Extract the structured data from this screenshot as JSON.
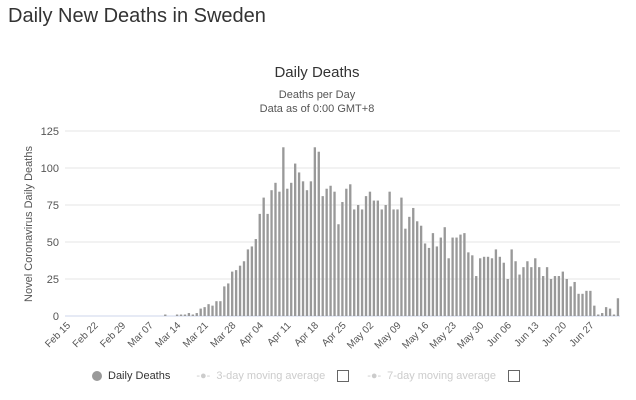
{
  "page_title": "Daily New Deaths in Sweden",
  "chart_data": {
    "type": "bar",
    "title": "Daily Deaths",
    "subtitle": "Deaths per Day",
    "subtitle2": "Data as of 0:00 GMT+8",
    "ylabel": "Novel Coronavirus Daily Deaths",
    "ylim": [
      0,
      125
    ],
    "yticks": [
      0,
      25,
      50,
      75,
      100,
      125
    ],
    "grid": true,
    "start_date": "Feb 15",
    "xtick_labels": [
      "Feb 15",
      "Feb 22",
      "Feb 29",
      "Mar 07",
      "Mar 14",
      "Mar 21",
      "Mar 28",
      "Apr 04",
      "Apr 11",
      "Apr 18",
      "Apr 25",
      "May 02",
      "May 09",
      "May 16",
      "May 23",
      "May 30",
      "Jun 06",
      "Jun 13",
      "Jun 20",
      "Jun 27"
    ],
    "bar_color": "#999999",
    "values": [
      0,
      0,
      0,
      0,
      0,
      0,
      0,
      0,
      0,
      0,
      0,
      0,
      0,
      0,
      0,
      0,
      0,
      0,
      0,
      0,
      0,
      0,
      0,
      0,
      0,
      1,
      0,
      0,
      1,
      1,
      1,
      2,
      1,
      2,
      5,
      6,
      8,
      7,
      10,
      10,
      20,
      22,
      30,
      31,
      34,
      37,
      45,
      47,
      52,
      69,
      80,
      69,
      85,
      90,
      84,
      114,
      86,
      90,
      103,
      97,
      91,
      85,
      91,
      114,
      111,
      81,
      86,
      88,
      84,
      62,
      77,
      86,
      89,
      72,
      75,
      72,
      81,
      84,
      78,
      78,
      72,
      75,
      84,
      72,
      72,
      80,
      59,
      67,
      73,
      64,
      61,
      49,
      46,
      56,
      47,
      53,
      60,
      39,
      53,
      53,
      55,
      56,
      43,
      41,
      27,
      39,
      40,
      40,
      39,
      45,
      40,
      36,
      25,
      45,
      37,
      28,
      33,
      37,
      33,
      39,
      33,
      27,
      33,
      25,
      27,
      27,
      30,
      25,
      20,
      23,
      15,
      15,
      17,
      17,
      7,
      1,
      2,
      6,
      5,
      1,
      12
    ],
    "legend": [
      {
        "label": "Daily Deaths",
        "enabled": true
      },
      {
        "label": "3-day moving average",
        "enabled": false
      },
      {
        "label": "7-day moving average",
        "enabled": false
      }
    ],
    "legend_position": "bottom"
  }
}
